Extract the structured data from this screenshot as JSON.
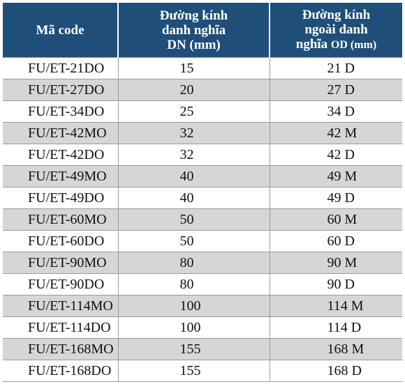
{
  "header": {
    "code": "Mã code",
    "dn": [
      "Đường kính",
      "danh nghĩa",
      "DN (mm)"
    ],
    "od": [
      "Đường kính",
      "ngoài danh",
      "nghĩa",
      "OD (mm)"
    ]
  },
  "rows": [
    {
      "code": "FU/ET-21DO",
      "dn": "15",
      "od": "21 D"
    },
    {
      "code": "FU/ET-27DO",
      "dn": "20",
      "od": "27 D"
    },
    {
      "code": "FU/ET-34DO",
      "dn": "25",
      "od": "34 D"
    },
    {
      "code": "FU/ET-42MO",
      "dn": "32",
      "od": "42 M"
    },
    {
      "code": "FU/ET-42DO",
      "dn": "32",
      "od": "42 D"
    },
    {
      "code": "FU/ET-49MO",
      "dn": "40",
      "od": "49 M"
    },
    {
      "code": "FU/ET-49DO",
      "dn": "40",
      "od": "49 D"
    },
    {
      "code": "FU/ET-60MO",
      "dn": "50",
      "od": "60 M"
    },
    {
      "code": "FU/ET-60DO",
      "dn": "50",
      "od": "60 D"
    },
    {
      "code": "FU/ET-90MO",
      "dn": "80",
      "od": "90 M"
    },
    {
      "code": "FU/ET-90DO",
      "dn": "80",
      "od": "90 D"
    },
    {
      "code": "FU/ET-114MO",
      "dn": "100",
      "od": "114 M"
    },
    {
      "code": "FU/ET-114DO",
      "dn": "100",
      "od": "114 D"
    },
    {
      "code": "FU/ET-168MO",
      "dn": "155",
      "od": "168 M"
    },
    {
      "code": "FU/ET-168DO",
      "dn": "155",
      "od": "168 D"
    }
  ]
}
